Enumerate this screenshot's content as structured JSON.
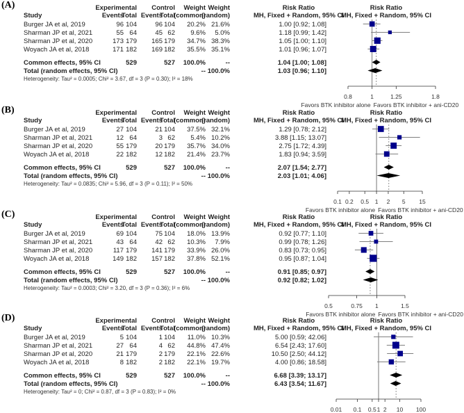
{
  "headers": {
    "study": "Study",
    "experimental": "Experimental",
    "control": "Control",
    "events": "Events",
    "total": "Total",
    "weight": "Weight",
    "common": "(common)",
    "random": "(random)",
    "risk_ratio": "Risk Ratio",
    "method": "MH, Fixed + Random, 95% CI",
    "favors_left": "Favors BTK inhibitor alone",
    "favors_right": "Favors BTK inhibitor + ani-CD20"
  },
  "colors": {
    "square": "#00008b",
    "ci": "#7f7f7f",
    "diamond": "#000000"
  },
  "chart_data": [
    {
      "type": "forest",
      "panel": "(A)",
      "xscale": "log",
      "xlim": [
        0.8,
        1.8
      ],
      "ticks": [
        0.8,
        1,
        1.25,
        1.8
      ],
      "tick_labels": [
        "0.8",
        "1",
        "1.25",
        "1.8"
      ],
      "rows": [
        {
          "study": "Burger JA et al, 2019",
          "e_events": "96",
          "e_total": "104",
          "c_events": "96",
          "c_total": "104",
          "w_common": "20.2%",
          "w_random": "21.6%",
          "ci_text": "1.00 [0.92; 1.08]",
          "rr": 1.0,
          "lo": 0.92,
          "hi": 1.08,
          "w": 21.6
        },
        {
          "study": "Sharman JP et al, 2021",
          "e_events": "55",
          "e_total": "64",
          "c_events": "45",
          "c_total": "62",
          "w_common": "9.6%",
          "w_random": "5.0%",
          "ci_text": "1.18 [0.99; 1.42]",
          "rr": 1.18,
          "lo": 0.99,
          "hi": 1.42,
          "w": 5.0
        },
        {
          "study": "Sharman JP et al, 2020",
          "e_events": "173",
          "e_total": "179",
          "c_events": "165",
          "c_total": "179",
          "w_common": "34.7%",
          "w_random": "38.3%",
          "ci_text": "1.05 [1.00; 1.10]",
          "rr": 1.05,
          "lo": 1.0,
          "hi": 1.1,
          "w": 38.3
        },
        {
          "study": "Woyach JA et al, 2018",
          "e_events": "171",
          "e_total": "182",
          "c_events": "169",
          "c_total": "182",
          "w_common": "35.5%",
          "w_random": "35.1%",
          "ci_text": "1.01 [0.96; 1.07]",
          "rr": 1.01,
          "lo": 0.96,
          "hi": 1.07,
          "w": 35.1
        }
      ],
      "common": {
        "label": "Common effects, 95% CI",
        "e_total": "529",
        "c_total": "527",
        "w_common": "100.0%",
        "w_random": "--",
        "ci_text": "1.04 [1.00; 1.08]",
        "rr": 1.04,
        "lo": 1.0,
        "hi": 1.08
      },
      "random": {
        "label": "Total (random effects, 95% CI)",
        "w_common": "--",
        "w_random": "100.0%",
        "ci_text": "1.03 [0.96; 1.10]",
        "rr": 1.03,
        "lo": 0.96,
        "hi": 1.1
      },
      "heterogeneity": "Heterogeneity: Tau² = 0.0005; Chi² = 3.67, df = 3 (P = 0.30); I² = 18%"
    },
    {
      "type": "forest",
      "panel": "(B)",
      "xscale": "log",
      "xlim": [
        0.1,
        15
      ],
      "ticks": [
        0.1,
        0.2,
        0.5,
        1,
        2,
        5,
        15
      ],
      "tick_labels": [
        "0.1",
        "0.2",
        "0.5",
        "1",
        "2",
        "5",
        "15"
      ],
      "rows": [
        {
          "study": "Burger JA et al, 2019",
          "e_events": "27",
          "e_total": "104",
          "c_events": "21",
          "c_total": "104",
          "w_common": "37.5%",
          "w_random": "32.1%",
          "ci_text": "1.29 [0.78; 2.12]",
          "rr": 1.29,
          "lo": 0.78,
          "hi": 2.12,
          "w": 32.1
        },
        {
          "study": "Sharman JP et al, 2021",
          "e_events": "12",
          "e_total": "64",
          "c_events": "3",
          "c_total": "62",
          "w_common": "5.4%",
          "w_random": "10.2%",
          "ci_text": "3.88 [1.15; 13.07]",
          "rr": 3.88,
          "lo": 1.15,
          "hi": 13.07,
          "w": 10.2
        },
        {
          "study": "Sharman JP et al, 2020",
          "e_events": "55",
          "e_total": "179",
          "c_events": "20",
          "c_total": "179",
          "w_common": "35.7%",
          "w_random": "34.0%",
          "ci_text": "2.75 [1.72; 4.39]",
          "rr": 2.75,
          "lo": 1.72,
          "hi": 4.39,
          "w": 34.0
        },
        {
          "study": "Woyach JA et al, 2018",
          "e_events": "22",
          "e_total": "182",
          "c_events": "12",
          "c_total": "182",
          "w_common": "21.4%",
          "w_random": "23.7%",
          "ci_text": "1.83 [0.94; 3.59]",
          "rr": 1.83,
          "lo": 0.94,
          "hi": 3.59,
          "w": 23.7
        }
      ],
      "common": {
        "label": "Common effects, 95% CI",
        "e_total": "529",
        "c_total": "527",
        "w_common": "100.0%",
        "w_random": "--",
        "ci_text": "2.07 [1.54; 2.77]",
        "rr": 2.07,
        "lo": 1.54,
        "hi": 2.77
      },
      "random": {
        "label": "Total (random effects, 95% CI)",
        "w_common": "--",
        "w_random": "100.0%",
        "ci_text": "2.03 [1.01; 4.06]",
        "rr": 2.03,
        "lo": 1.01,
        "hi": 4.06
      },
      "heterogeneity": "Heterogeneity: Tau² = 0.0835; Chi² = 5.96, df = 3 (P = 0.11); I² = 50%"
    },
    {
      "type": "forest",
      "panel": "(C)",
      "xscale": "log",
      "xlim": [
        0.5,
        1.5
      ],
      "ticks": [
        0.5,
        0.75,
        1,
        1.5
      ],
      "tick_labels": [
        "0.5",
        "0.75",
        "1",
        "1.5"
      ],
      "rows": [
        {
          "study": "Burger JA et al, 2019",
          "e_events": "69",
          "e_total": "104",
          "c_events": "75",
          "c_total": "104",
          "w_common": "18.0%",
          "w_random": "13.9%",
          "ci_text": "0.92 [0.77; 1.10]",
          "rr": 0.92,
          "lo": 0.77,
          "hi": 1.1,
          "w": 13.9
        },
        {
          "study": "Sharman JP et al, 2021",
          "e_events": "43",
          "e_total": "64",
          "c_events": "42",
          "c_total": "62",
          "w_common": "10.3%",
          "w_random": "7.9%",
          "ci_text": "0.99 [0.78; 1.26]",
          "rr": 0.99,
          "lo": 0.78,
          "hi": 1.26,
          "w": 7.9
        },
        {
          "study": "Sharman JP et al, 2020",
          "e_events": "117",
          "e_total": "179",
          "c_events": "141",
          "c_total": "179",
          "w_common": "33.9%",
          "w_random": "26.0%",
          "ci_text": "0.83 [0.73; 0.95]",
          "rr": 0.83,
          "lo": 0.73,
          "hi": 0.95,
          "w": 26.0
        },
        {
          "study": "Woyach JA et al, 2018",
          "e_events": "149",
          "e_total": "182",
          "c_events": "157",
          "c_total": "182",
          "w_common": "37.8%",
          "w_random": "52.1%",
          "ci_text": "0.95 [0.87; 1.04]",
          "rr": 0.95,
          "lo": 0.87,
          "hi": 1.04,
          "w": 52.1
        }
      ],
      "common": {
        "label": "Common effects, 95% CI",
        "e_total": "529",
        "c_total": "527",
        "w_common": "100.0%",
        "w_random": "--",
        "ci_text": "0.91 [0.85; 0.97]",
        "rr": 0.91,
        "lo": 0.85,
        "hi": 0.97
      },
      "random": {
        "label": "Total (random effects, 95% CI)",
        "w_common": "--",
        "w_random": "100.0%",
        "ci_text": "0.92 [0.82; 1.02]",
        "rr": 0.92,
        "lo": 0.82,
        "hi": 1.02
      },
      "heterogeneity": "Heterogeneity: Tau² = 0.0003; Chi² = 3.20, df = 3 (P = 0.36); I² = 6%"
    },
    {
      "type": "forest",
      "panel": "(D)",
      "xscale": "log",
      "xlim": [
        0.01,
        100
      ],
      "ticks": [
        0.01,
        0.1,
        0.5,
        1,
        2,
        10,
        100
      ],
      "tick_labels": [
        "0.01",
        "0.1",
        "0.5",
        "1",
        "2",
        "10",
        "100"
      ],
      "rows": [
        {
          "study": "Burger JA et al, 2019",
          "e_events": "5",
          "e_total": "104",
          "c_events": "1",
          "c_total": "104",
          "w_common": "11.0%",
          "w_random": "10.3%",
          "ci_text": "5.00 [0.59; 42.06]",
          "rr": 5.0,
          "lo": 0.59,
          "hi": 42.06,
          "w": 10.3
        },
        {
          "study": "Sharman JP et al, 2021",
          "e_events": "27",
          "e_total": "64",
          "c_events": "4",
          "c_total": "62",
          "w_common": "44.8%",
          "w_random": "47.4%",
          "ci_text": "6.54 [2.43; 17.60]",
          "rr": 6.54,
          "lo": 2.43,
          "hi": 17.6,
          "w": 47.4
        },
        {
          "study": "Sharman JP et al, 2020",
          "e_events": "21",
          "e_total": "179",
          "c_events": "2",
          "c_total": "179",
          "w_common": "22.1%",
          "w_random": "22.6%",
          "ci_text": "10.50 [2.50; 44.12]",
          "rr": 10.5,
          "lo": 2.5,
          "hi": 44.12,
          "w": 22.6
        },
        {
          "study": "Woyach JA et al, 2018",
          "e_events": "8",
          "e_total": "182",
          "c_events": "2",
          "c_total": "182",
          "w_common": "22.1%",
          "w_random": "19.7%",
          "ci_text": "4.00 [0.86; 18.58]",
          "rr": 4.0,
          "lo": 0.86,
          "hi": 18.58,
          "w": 19.7
        }
      ],
      "common": {
        "label": "Common effects, 95% CI",
        "e_total": "529",
        "c_total": "527",
        "w_common": "100.0%",
        "w_random": "--",
        "ci_text": "6.68 [3.39; 13.17]",
        "rr": 6.68,
        "lo": 3.39,
        "hi": 13.17
      },
      "random": {
        "label": "Total (random effects, 95% CI)",
        "w_common": "--",
        "w_random": "100.0%",
        "ci_text": "6.43 [3.54; 11.67]",
        "rr": 6.43,
        "lo": 3.54,
        "hi": 11.67
      },
      "heterogeneity": "Heterogeneity: Tau² = 0; Chi² = 0.87, df = 3 (P = 0.83); I² = 0%"
    }
  ]
}
